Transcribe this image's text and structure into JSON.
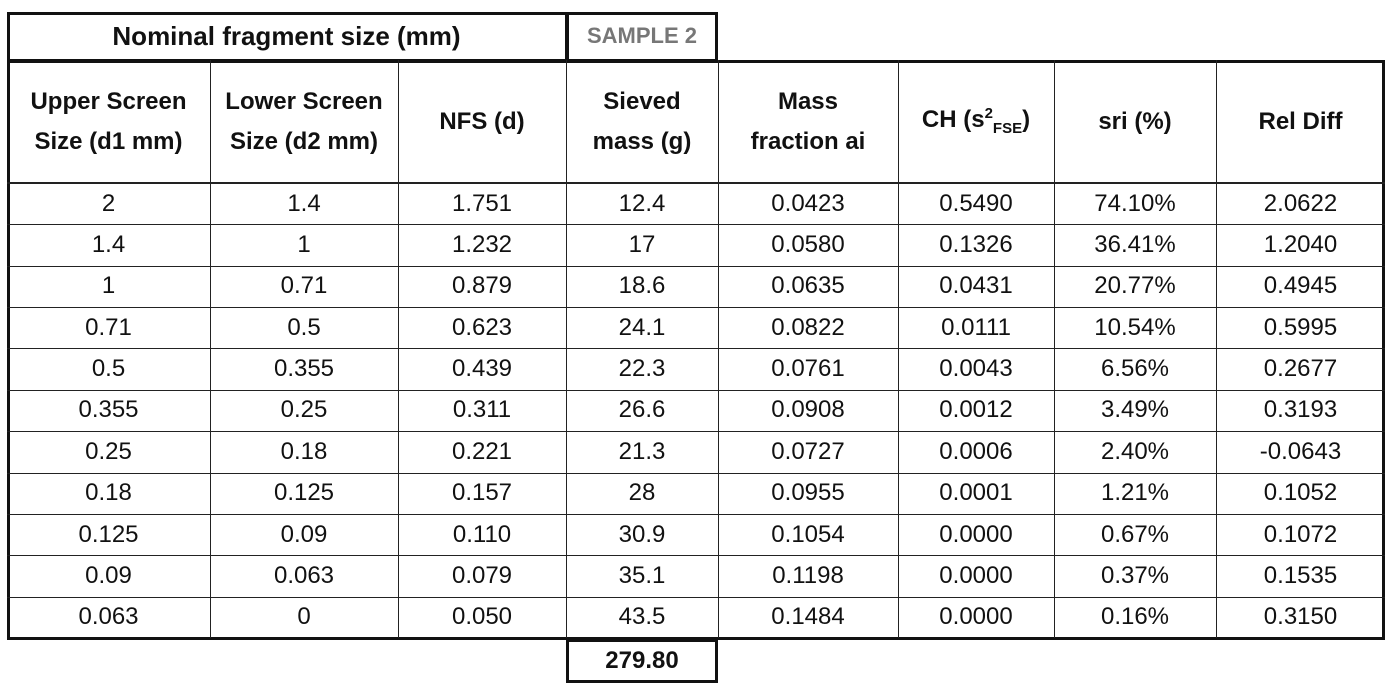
{
  "title": "Nominal fragment size (mm)",
  "sample": "SAMPLE 2",
  "columns": [
    [
      "Upper Screen",
      "Size (d1 mm)"
    ],
    [
      "Lower Screen",
      "Size (d2 mm)"
    ],
    [
      "NFS (d)"
    ],
    [
      "Sieved",
      "mass (g)"
    ],
    [
      "Mass",
      "fraction ai"
    ],
    {
      "base": "CH (s",
      "sup": "2",
      "sub": "FSE",
      "end": ")"
    },
    [
      "sri (%)"
    ],
    [
      "Rel Diff"
    ]
  ],
  "rows": [
    [
      "2",
      "1.4",
      "1.751",
      "12.4",
      "0.0423",
      "0.5490",
      "74.10%",
      "2.0622"
    ],
    [
      "1.4",
      "1",
      "1.232",
      "17",
      "0.0580",
      "0.1326",
      "36.41%",
      "1.2040"
    ],
    [
      "1",
      "0.71",
      "0.879",
      "18.6",
      "0.0635",
      "0.0431",
      "20.77%",
      "0.4945"
    ],
    [
      "0.71",
      "0.5",
      "0.623",
      "24.1",
      "0.0822",
      "0.0111",
      "10.54%",
      "0.5995"
    ],
    [
      "0.5",
      "0.355",
      "0.439",
      "22.3",
      "0.0761",
      "0.0043",
      "6.56%",
      "0.2677"
    ],
    [
      "0.355",
      "0.25",
      "0.311",
      "26.6",
      "0.0908",
      "0.0012",
      "3.49%",
      "0.3193"
    ],
    [
      "0.25",
      "0.18",
      "0.221",
      "21.3",
      "0.0727",
      "0.0006",
      "2.40%",
      "-0.0643"
    ],
    [
      "0.18",
      "0.125",
      "0.157",
      "28",
      "0.0955",
      "0.0001",
      "1.21%",
      "0.1052"
    ],
    [
      "0.125",
      "0.09",
      "0.110",
      "30.9",
      "0.1054",
      "0.0000",
      "0.67%",
      "0.1072"
    ],
    [
      "0.09",
      "0.063",
      "0.079",
      "35.1",
      "0.1198",
      "0.0000",
      "0.37%",
      "0.1535"
    ],
    [
      "0.063",
      "0",
      "0.050",
      "43.5",
      "0.1484",
      "0.0000",
      "0.16%",
      "0.3150"
    ]
  ],
  "total": "279.80"
}
